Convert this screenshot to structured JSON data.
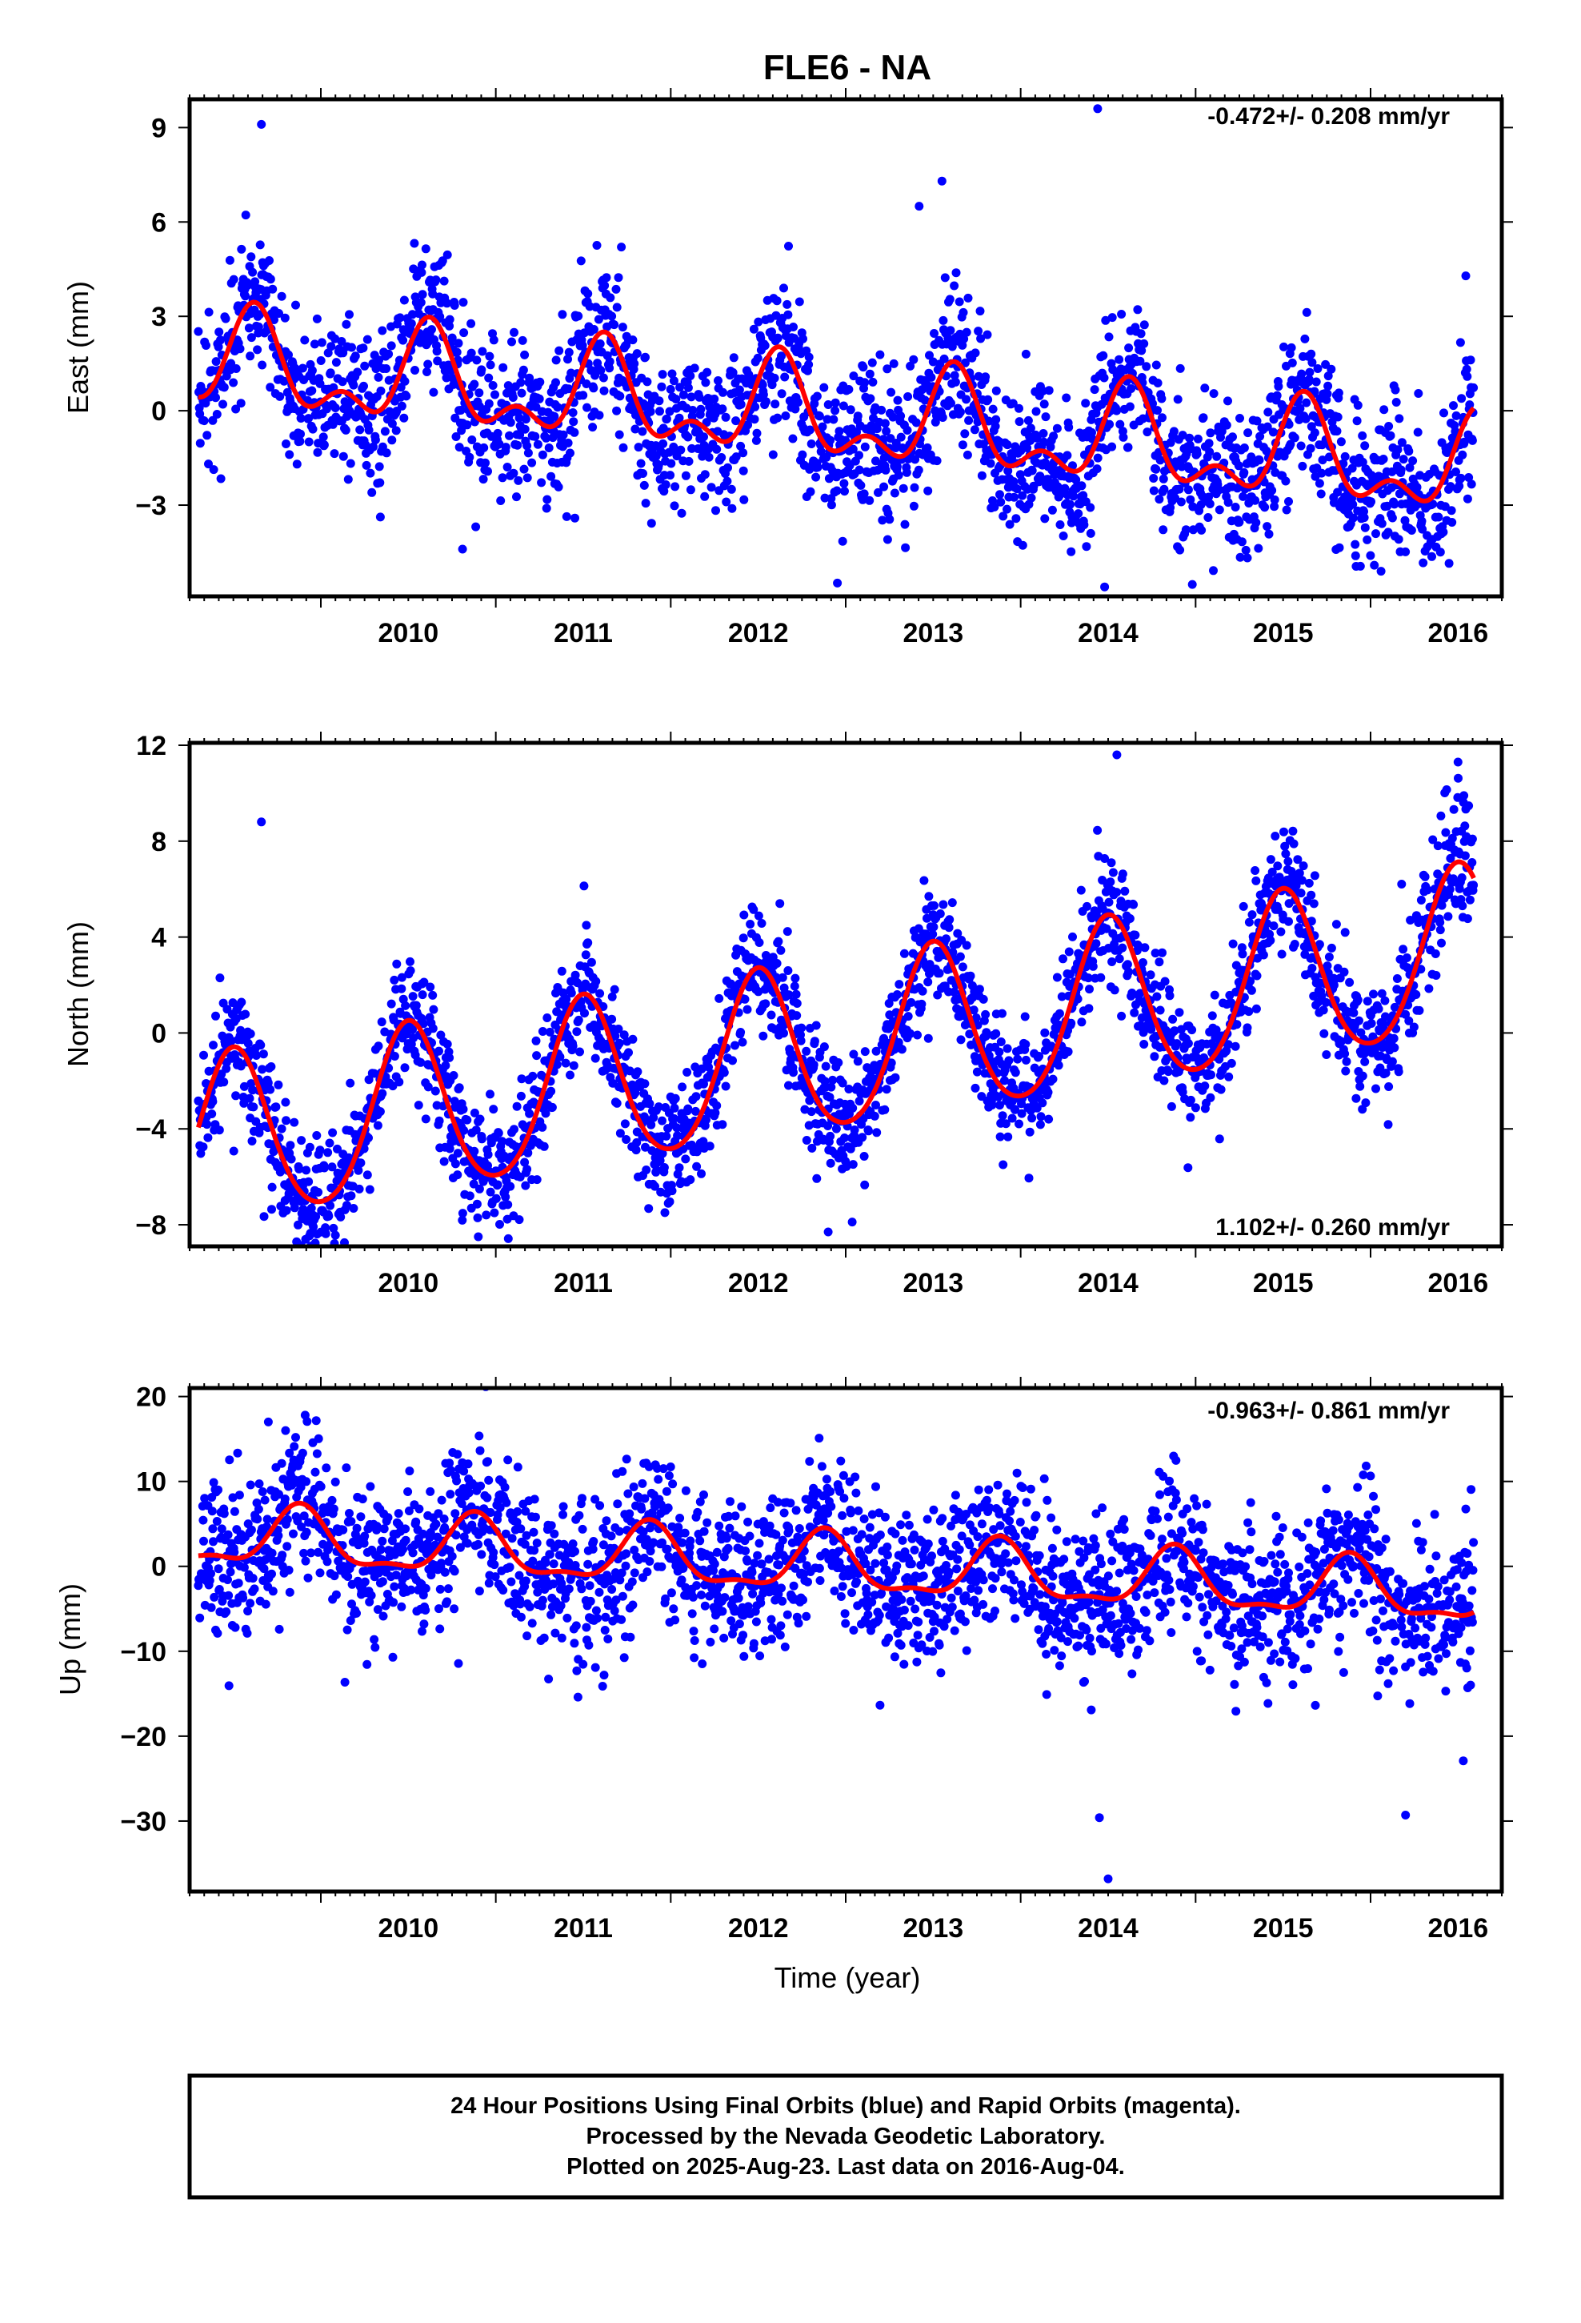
{
  "colors": {
    "points": "#0000ff",
    "fit": "#ff0000",
    "frame": "#000000",
    "background": "#ffffff"
  },
  "chart_data": {
    "title": "FLE6 - NA",
    "xlabel": "Time (year)",
    "xticks": [
      "2010",
      "2011",
      "2012",
      "2013",
      "2014",
      "2015",
      "2016"
    ],
    "data_span": [
      "2009.30",
      "2016.59"
    ],
    "panels": [
      {
        "type": "scatter",
        "ylabel": "East (mm)",
        "ylim": [
          -5.9,
          9.9
        ],
        "xlim": [
          2009.25,
          2016.75
        ],
        "yticks": [
          9,
          6,
          3,
          0,
          -3
        ],
        "rate": "-0.472+/- 0.208 mm/yr",
        "rate_position": "top-right",
        "trend_mm_per_yr": -0.472,
        "offset": 1.5,
        "annual": {
          "amp": 1.3,
          "peak": 0.62
        },
        "semiannual": {
          "amp": 0.8,
          "peak": 0.62
        },
        "noise": 1.2,
        "outliers": [
          [
            2009.66,
            9.1
          ],
          [
            2013.42,
            6.5
          ],
          [
            2013.55,
            7.3
          ],
          [
            2014.44,
            9.6
          ],
          [
            2014.48,
            -5.6
          ],
          [
            2010.81,
            -4.4
          ]
        ]
      },
      {
        "type": "scatter",
        "ylabel": "North (mm)",
        "ylim": [
          -8.9,
          12.1
        ],
        "xlim": [
          2009.25,
          2016.75
        ],
        "yticks": [
          12,
          8,
          4,
          0,
          -4,
          -8
        ],
        "rate": "1.102+/- 0.260 mm/yr",
        "rate_position": "bottom-right",
        "trend_mm_per_yr": 1.102,
        "offset": -4.7,
        "annual": {
          "amp": 3.5,
          "peak": 0.5
        },
        "semiannual": {
          "amp": 0.4,
          "peak": 0.5
        },
        "noise": 1.3,
        "outliers": [
          [
            2009.66,
            8.8
          ],
          [
            2010.9,
            -8.5
          ],
          [
            2012.9,
            -8.3
          ],
          [
            2014.55,
            11.6
          ],
          [
            2016.5,
            11.3
          ]
        ]
      },
      {
        "type": "scatter",
        "ylabel": "Up (mm)",
        "ylim": [
          -38.3,
          21.0
        ],
        "xlim": [
          2009.25,
          2016.75
        ],
        "yticks": [
          20,
          10,
          0,
          -10,
          -20,
          -30
        ],
        "rate": "-0.963+/- 0.861 mm/yr",
        "rate_position": "top-right",
        "trend_mm_per_yr": -0.963,
        "offset": 3.5,
        "annual": {
          "amp": 3.3,
          "peak": 0.88
        },
        "semiannual": {
          "amp": 1.2,
          "peak": 0.88
        },
        "noise": 4.6,
        "outliers": [
          [
            2014.45,
            -29.6
          ],
          [
            2014.5,
            -36.8
          ],
          [
            2016.2,
            -29.3
          ],
          [
            2011.47,
            -15.4
          ],
          [
            2016.53,
            -22.9
          ],
          [
            2009.7,
            17.0
          ]
        ]
      }
    ],
    "footer": [
      "24 Hour Positions Using Final Orbits (blue) and Rapid Orbits (magenta).",
      "Processed by the Nevada Geodetic Laboratory.",
      "Plotted on 2025-Aug-23. Last data on 2016-Aug-04."
    ]
  }
}
